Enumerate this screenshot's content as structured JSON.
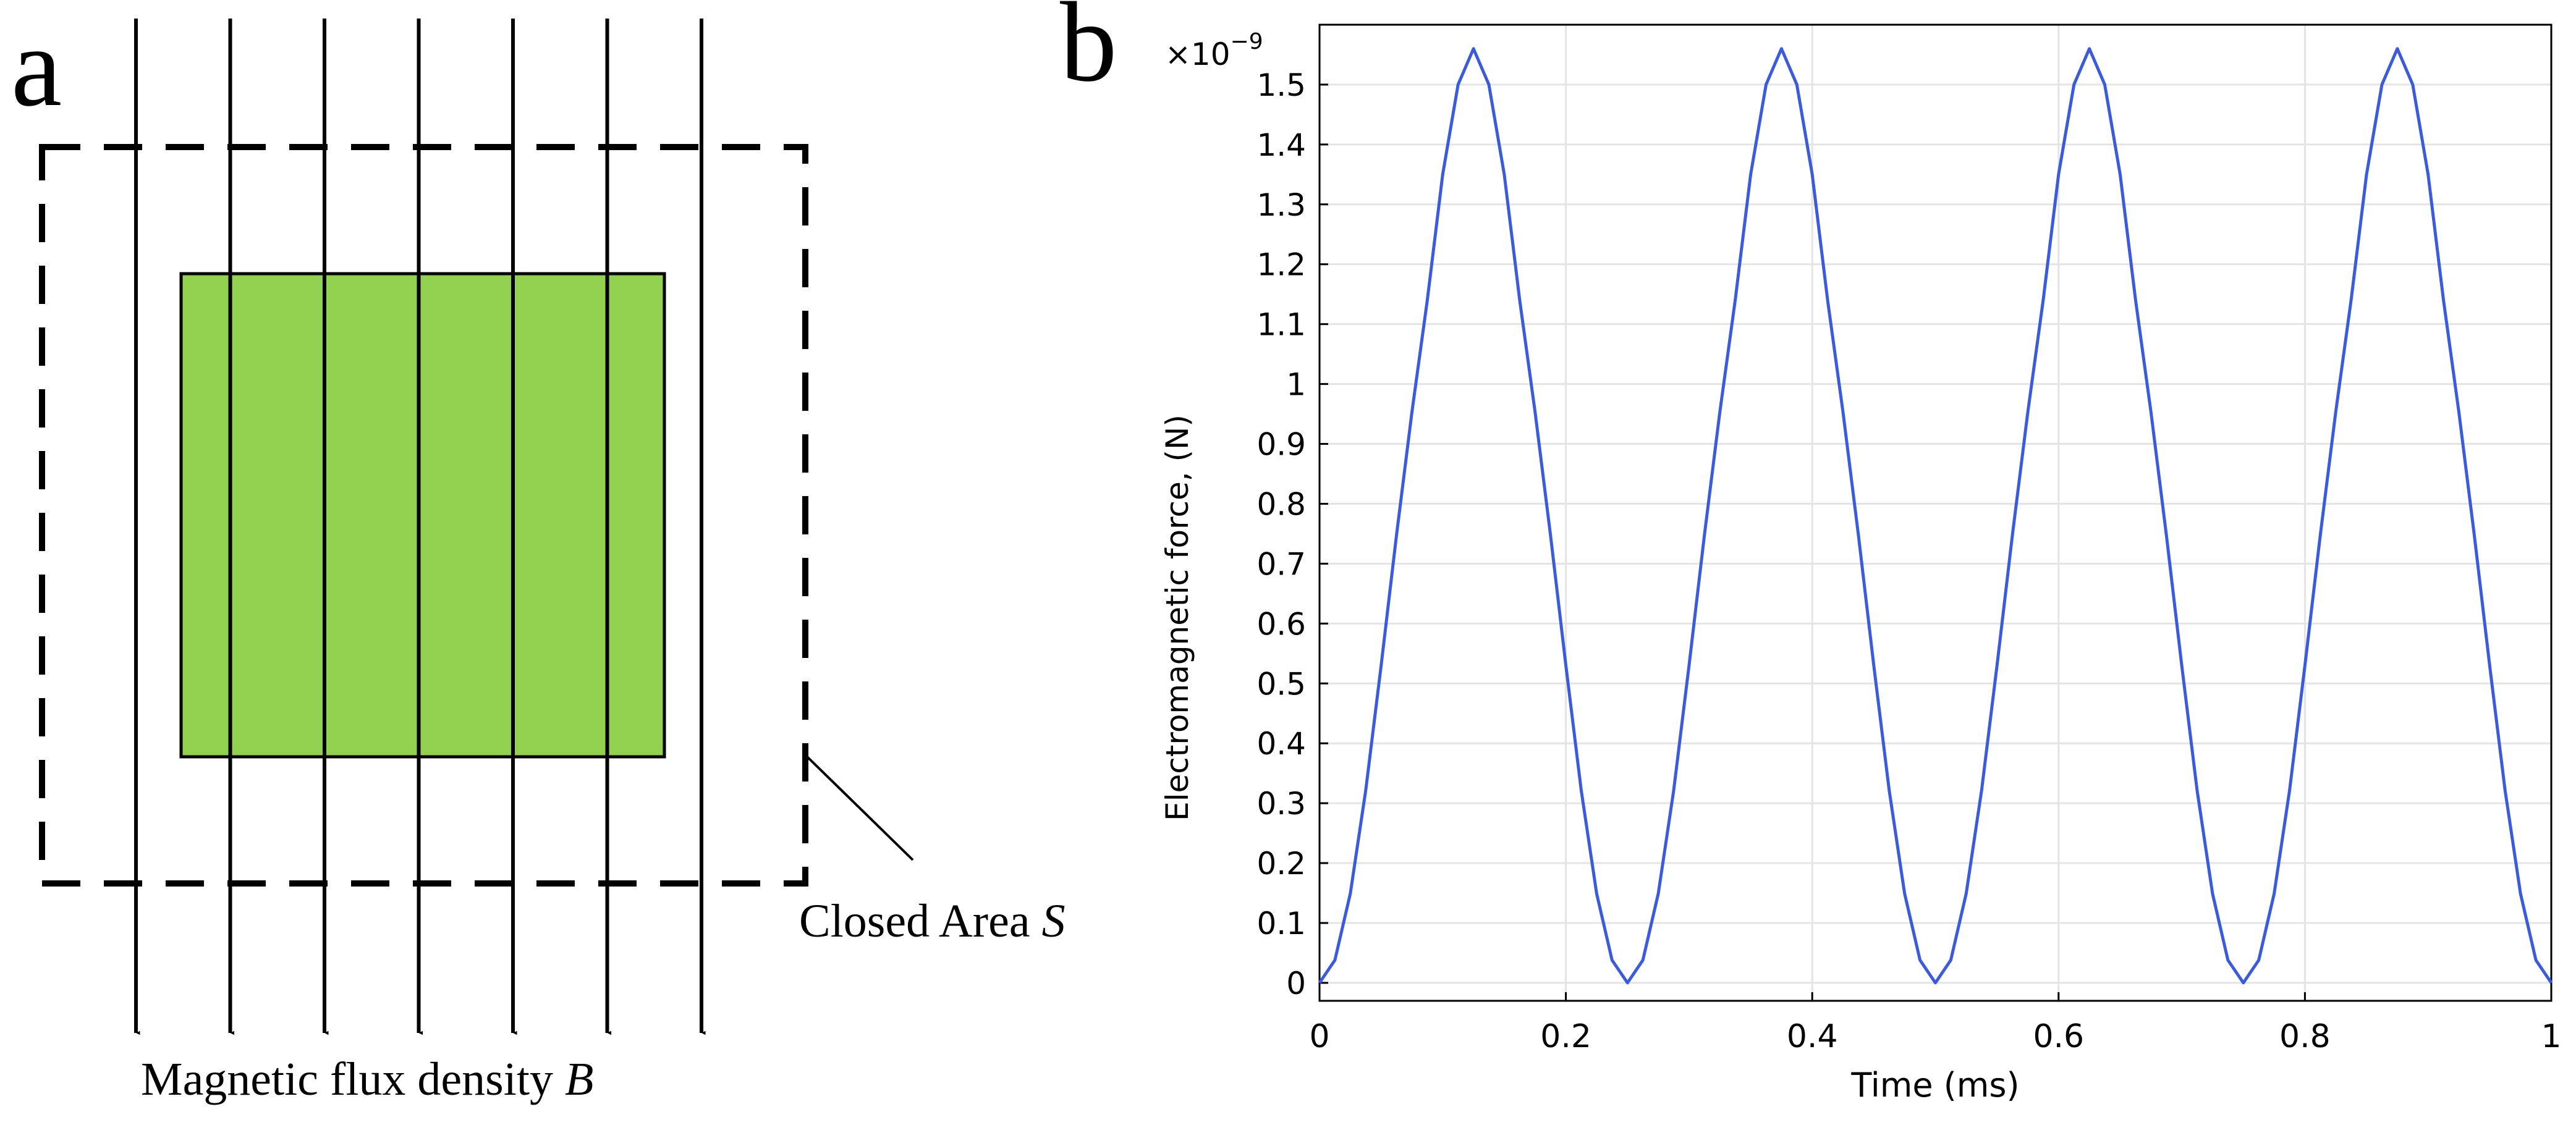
{
  "panel_a": {
    "label": "a",
    "closed_area_label": "Closed Area ",
    "closed_area_symbol": "S",
    "flux_label": "Magnetic flux density ",
    "flux_symbol": "B",
    "conductor_color": "#92d050",
    "field_line_count": 7
  },
  "panel_b": {
    "label": "b"
  },
  "chart_data": {
    "type": "line",
    "title": "",
    "xlabel": "Time (ms)",
    "ylabel": "Electromagnetic force, (N)",
    "y_scale_label": "×10",
    "y_scale_exponent": "−9",
    "xlim": [
      0,
      1
    ],
    "ylim": [
      -0.03,
      1.6
    ],
    "xticks": [
      0,
      0.2,
      0.4,
      0.6,
      0.8,
      1
    ],
    "xtick_labels": [
      "0",
      "0.2",
      "0.4",
      "0.6",
      "0.8",
      "1"
    ],
    "yticks": [
      0,
      0.1,
      0.2,
      0.3,
      0.4,
      0.5,
      0.6,
      0.7,
      0.8,
      0.9,
      1,
      1.1,
      1.2,
      1.3,
      1.4,
      1.5
    ],
    "ytick_labels": [
      "0",
      "0.1",
      "0.2",
      "0.3",
      "0.4",
      "0.5",
      "0.6",
      "0.7",
      "0.8",
      "0.9",
      "1",
      "1.1",
      "1.2",
      "1.3",
      "1.4",
      "1.5"
    ],
    "grid": true,
    "series": [
      {
        "name": "Electromagnetic force",
        "color": "#3a5bdb",
        "x": [
          0,
          0.0125,
          0.025,
          0.0375,
          0.05,
          0.0625,
          0.075,
          0.0875,
          0.1,
          0.1125,
          0.125,
          0.1375,
          0.15,
          0.1625,
          0.175,
          0.1875,
          0.2,
          0.2125,
          0.225,
          0.2375,
          0.25,
          0.2625,
          0.275,
          0.2875,
          0.3,
          0.3125,
          0.325,
          0.3375,
          0.35,
          0.3625,
          0.375,
          0.3875,
          0.4,
          0.4125,
          0.425,
          0.4375,
          0.45,
          0.4625,
          0.475,
          0.4875,
          0.5,
          0.5125,
          0.525,
          0.5375,
          0.55,
          0.5625,
          0.575,
          0.5875,
          0.6,
          0.6125,
          0.625,
          0.6375,
          0.65,
          0.6625,
          0.675,
          0.6875,
          0.7,
          0.7125,
          0.725,
          0.7375,
          0.75,
          0.7625,
          0.775,
          0.7875,
          0.8,
          0.8125,
          0.825,
          0.8375,
          0.85,
          0.8625,
          0.875,
          0.8875,
          0.9,
          0.9125,
          0.925,
          0.9375,
          0.95,
          0.9625,
          0.975,
          0.9875,
          1
        ],
        "y": [
          0,
          0.038,
          0.149,
          0.321,
          0.53,
          0.748,
          0.953,
          1.14,
          1.35,
          1.5,
          1.56,
          1.5,
          1.35,
          1.14,
          0.953,
          0.748,
          0.53,
          0.321,
          0.149,
          0.038,
          0,
          0.038,
          0.149,
          0.321,
          0.53,
          0.748,
          0.953,
          1.14,
          1.35,
          1.5,
          1.56,
          1.5,
          1.35,
          1.14,
          0.953,
          0.748,
          0.53,
          0.321,
          0.149,
          0.038,
          0,
          0.038,
          0.149,
          0.321,
          0.53,
          0.748,
          0.953,
          1.14,
          1.35,
          1.5,
          1.56,
          1.5,
          1.35,
          1.14,
          0.953,
          0.748,
          0.53,
          0.321,
          0.149,
          0.038,
          0,
          0.038,
          0.149,
          0.321,
          0.53,
          0.748,
          0.953,
          1.14,
          1.35,
          1.5,
          1.56,
          1.5,
          1.35,
          1.14,
          0.953,
          0.748,
          0.53,
          0.321,
          0.149,
          0.038,
          0
        ]
      }
    ]
  }
}
